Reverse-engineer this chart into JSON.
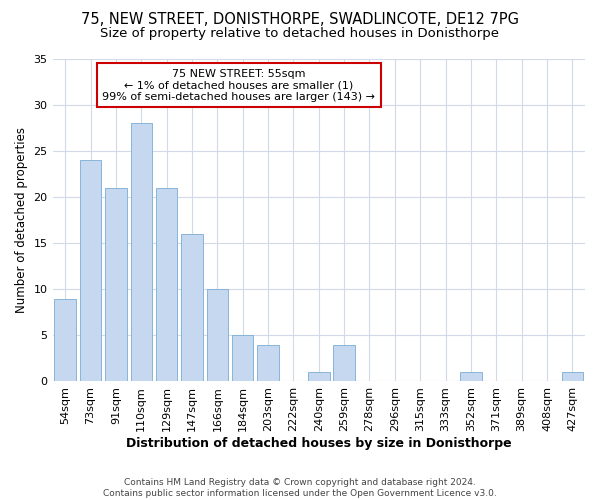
{
  "title1": "75, NEW STREET, DONISTHORPE, SWADLINCOTE, DE12 7PG",
  "title2": "Size of property relative to detached houses in Donisthorpe",
  "xlabel": "Distribution of detached houses by size in Donisthorpe",
  "ylabel": "Number of detached properties",
  "categories": [
    "54sqm",
    "73sqm",
    "91sqm",
    "110sqm",
    "129sqm",
    "147sqm",
    "166sqm",
    "184sqm",
    "203sqm",
    "222sqm",
    "240sqm",
    "259sqm",
    "278sqm",
    "296sqm",
    "315sqm",
    "333sqm",
    "352sqm",
    "371sqm",
    "389sqm",
    "408sqm",
    "427sqm"
  ],
  "values": [
    9,
    24,
    21,
    28,
    21,
    16,
    10,
    5,
    4,
    0,
    1,
    4,
    0,
    0,
    0,
    0,
    1,
    0,
    0,
    0,
    1
  ],
  "bar_color": "#c5d8f0",
  "bar_edge_color": "#7aadd4",
  "ylim": [
    0,
    35
  ],
  "yticks": [
    0,
    5,
    10,
    15,
    20,
    25,
    30,
    35
  ],
  "annotation_line1": "75 NEW STREET: 55sqm",
  "annotation_line2": "← 1% of detached houses are smaller (1)",
  "annotation_line3": "99% of semi-detached houses are larger (143) →",
  "annotation_box_facecolor": "#ffffff",
  "annotation_box_edgecolor": "#cc0000",
  "bg_color": "#ffffff",
  "grid_color": "#d0dae8",
  "footer_line1": "Contains HM Land Registry data © Crown copyright and database right 2024.",
  "footer_line2": "Contains public sector information licensed under the Open Government Licence v3.0.",
  "title1_fontsize": 10.5,
  "title2_fontsize": 9.5,
  "xlabel_fontsize": 9,
  "ylabel_fontsize": 8.5,
  "tick_fontsize": 8,
  "annotation_fontsize": 8,
  "footer_fontsize": 6.5
}
